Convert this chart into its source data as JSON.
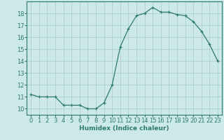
{
  "x": [
    0,
    1,
    2,
    3,
    4,
    5,
    6,
    7,
    8,
    9,
    10,
    11,
    12,
    13,
    14,
    15,
    16,
    17,
    18,
    19,
    20,
    21,
    22,
    23
  ],
  "y": [
    11.2,
    11.0,
    11.0,
    11.0,
    10.3,
    10.3,
    10.3,
    10.0,
    10.0,
    10.5,
    12.0,
    15.2,
    16.7,
    17.8,
    18.0,
    18.5,
    18.1,
    18.1,
    17.9,
    17.8,
    17.3,
    16.5,
    15.4,
    14.0
  ],
  "xlabel": "Humidex (Indice chaleur)",
  "xlim": [
    -0.5,
    23.5
  ],
  "ylim": [
    9.5,
    19.0
  ],
  "yticks": [
    10,
    11,
    12,
    13,
    14,
    15,
    16,
    17,
    18
  ],
  "xticks": [
    0,
    1,
    2,
    3,
    4,
    5,
    6,
    7,
    8,
    9,
    10,
    11,
    12,
    13,
    14,
    15,
    16,
    17,
    18,
    19,
    20,
    21,
    22,
    23
  ],
  "line_color": "#2d7a6e",
  "marker": "+",
  "bg_color": "#cce8e8",
  "grid_color": "#afd0d0",
  "label_fontsize": 6.5,
  "tick_fontsize": 6.0
}
